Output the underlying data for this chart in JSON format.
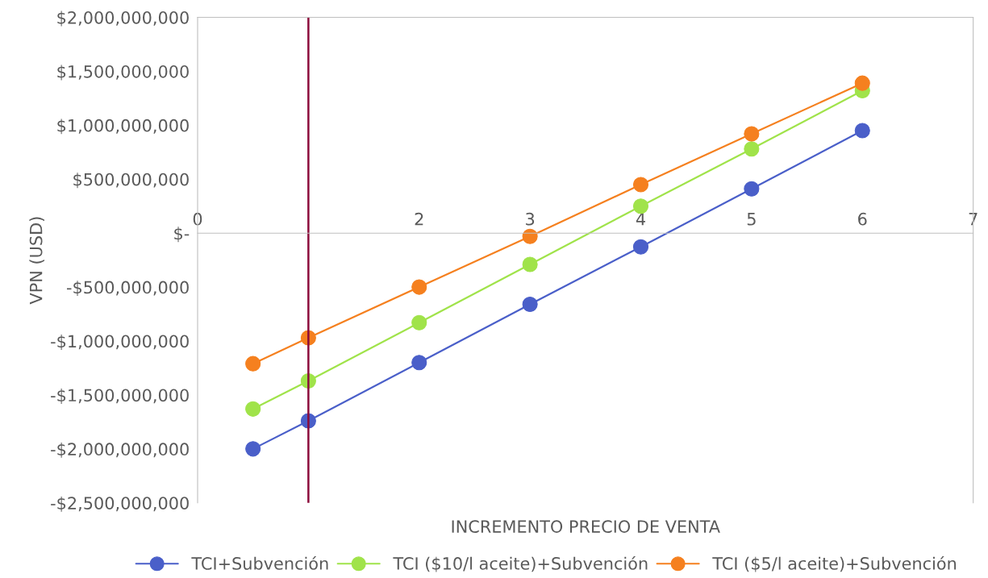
{
  "chart_data": {
    "type": "line",
    "xlabel": "INCREMENTO PRECIO DE VENTA",
    "ylabel": "VPN (USD)",
    "x": [
      0.5,
      1,
      2,
      3,
      4,
      5,
      6
    ],
    "series": [
      {
        "name": "TCI+Subvención",
        "color": "#4a5fc9",
        "values": [
          -2000000000,
          -1740000000,
          -1200000000,
          -660000000,
          -127000000,
          410000000,
          950000000
        ]
      },
      {
        "name": "TCI ($10/l aceite)+Subvención",
        "color": "#a0e34a",
        "values": [
          -1630000000,
          -1370000000,
          -830000000,
          -290000000,
          250000000,
          780000000,
          1320000000
        ]
      },
      {
        "name": "TCI ($5/l aceite)+Subvención",
        "color": "#f5801f",
        "values": [
          -1210000000,
          -970000000,
          -500000000,
          -30000000,
          450000000,
          920000000,
          1390000000
        ]
      }
    ],
    "xlim": [
      0,
      7
    ],
    "xticks": [
      0,
      {
        "value": 1,
        "label": null
      },
      2,
      3,
      4,
      5,
      6,
      7
    ],
    "ylim": [
      -2500000000,
      2000000000
    ],
    "yticks": [
      {
        "value": -2500000000,
        "label": "-$2,500,000,000"
      },
      {
        "value": -2000000000,
        "label": "-$2,000,000,000"
      },
      {
        "value": -1500000000,
        "label": "-$1,500,000,000"
      },
      {
        "value": -1000000000,
        "label": "-$1,000,000,000"
      },
      {
        "value": -500000000,
        "label": "-$500,000,000"
      },
      {
        "value": 0,
        "label": "$-"
      },
      {
        "value": 500000000,
        "label": "$500,000,000"
      },
      {
        "value": 1000000000,
        "label": "$1,000,000,000"
      },
      {
        "value": 1500000000,
        "label": "$1,500,000,000"
      },
      {
        "value": 2000000000,
        "label": "$2,000,000,000"
      }
    ],
    "ref_lines": [
      {
        "axis": "x",
        "value": 1,
        "color": "#8b0a3a"
      }
    ],
    "grid": false,
    "legend": "bottom",
    "marker": "circle",
    "line_style": "solid"
  }
}
